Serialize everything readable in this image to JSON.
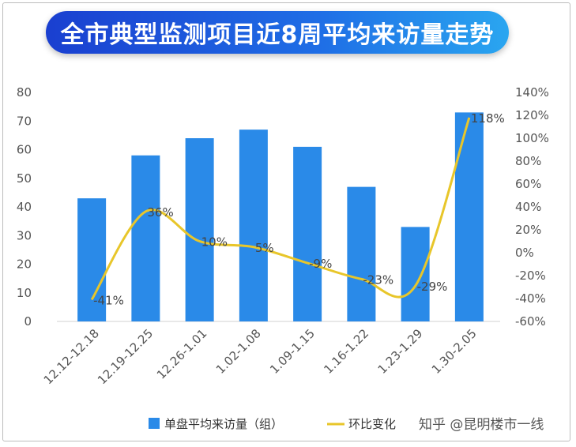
{
  "chart_data": {
    "type": "bar",
    "title": "全市典型监测项目近8周平均来访量走势",
    "categories": [
      "12.12-12.18",
      "12.19-12.25",
      "12.26-1.01",
      "1.02-1.08",
      "1.09-1.15",
      "1.16-1.22",
      "1.23-1.29",
      "1.30-2.05"
    ],
    "series": [
      {
        "name": "单盘平均来访量（组）",
        "type": "bar",
        "axis": "left",
        "color": "#2a8ae8",
        "values": [
          43,
          58,
          64,
          67,
          61,
          47,
          33,
          73
        ]
      },
      {
        "name": "环比变化",
        "type": "line",
        "axis": "right",
        "color": "#e8c62a",
        "values": [
          -41,
          36,
          10,
          5,
          -9,
          -23,
          -29,
          118
        ],
        "labels": [
          "-41%",
          "36%",
          "10%",
          "5%",
          "-9%",
          "-23%",
          "-29%",
          "118%"
        ]
      }
    ],
    "ylim": [
      0,
      80
    ],
    "yticks": [
      "0",
      "10",
      "20",
      "30",
      "40",
      "50",
      "60",
      "70",
      "80"
    ],
    "y2lim": [
      -60,
      140
    ],
    "y2ticks": [
      "-60%",
      "-40%",
      "-20%",
      "0%",
      "20%",
      "40%",
      "60%",
      "80%",
      "100%",
      "120%",
      "140%"
    ],
    "grid": false,
    "legend": "bottom"
  },
  "watermark": "知乎 @昆明楼市一线"
}
